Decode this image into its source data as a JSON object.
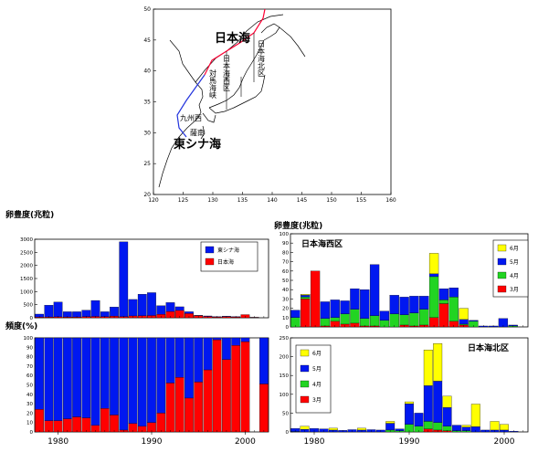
{
  "colors": {
    "blue": "#0018f0",
    "red": "#ff0000",
    "green": "#22d422",
    "yellow": "#ffff00",
    "line_japan_sea": "#ff0033",
    "line_east_china_sea": "#2233dd"
  },
  "map": {
    "labels": {
      "japan_sea": "日本海",
      "east_china_sea": "東シナ海",
      "japan_sea_north": "日本海北区",
      "japan_sea_west": "日本海西区",
      "tsushima_strait": "対馬海峡",
      "kyushu_west": "九州西",
      "kyushu_south": "薩南"
    },
    "x_ticks": [
      "120",
      "125",
      "130",
      "135",
      "140",
      "145",
      "150",
      "155",
      "160"
    ],
    "y_ticks": [
      "50",
      "45",
      "40",
      "35",
      "30",
      "25",
      "20"
    ]
  },
  "chart_data": [
    {
      "id": "egg_total",
      "type": "bar",
      "stacked": "overlay",
      "ylabel": "卵豊度(兆粒)",
      "ylim": [
        0,
        3000
      ],
      "y_ticks": [
        "3000",
        "2500",
        "2000",
        "1500",
        "1000",
        "500",
        "0"
      ],
      "x": [
        1978,
        1979,
        1980,
        1981,
        1982,
        1983,
        1984,
        1985,
        1986,
        1987,
        1988,
        1989,
        1990,
        1991,
        1992,
        1993,
        1994,
        1995,
        1996,
        1997,
        1998,
        1999,
        2000,
        2001
      ],
      "series": [
        {
          "name": "東シナ海",
          "color": "#0018f0",
          "values": [
            140,
            480,
            600,
            230,
            230,
            290,
            660,
            230,
            410,
            2900,
            700,
            900,
            960,
            460,
            580,
            420,
            230,
            95,
            70,
            45,
            60,
            45,
            50,
            20
          ]
        },
        {
          "name": "日本海",
          "color": "#ff0000",
          "values": [
            25,
            30,
            35,
            30,
            30,
            40,
            50,
            40,
            60,
            45,
            70,
            75,
            85,
            130,
            240,
            280,
            160,
            80,
            50,
            30,
            40,
            30,
            120,
            15
          ]
        }
      ],
      "legend_position": "top-right"
    },
    {
      "id": "frequency",
      "type": "bar",
      "stacked": true,
      "ylabel": "頻度(%)",
      "ylim": [
        0,
        100
      ],
      "y_ticks": [
        "100",
        "90",
        "80",
        "70",
        "60",
        "50",
        "40",
        "30",
        "20",
        "10",
        "0"
      ],
      "x_ticks": [
        "1980",
        "1990",
        "2000"
      ],
      "x": [
        1978,
        1979,
        1980,
        1981,
        1982,
        1983,
        1984,
        1985,
        1986,
        1987,
        1988,
        1989,
        1990,
        1991,
        1992,
        1993,
        1994,
        1995,
        1996,
        1997,
        1998,
        1999,
        2000,
        2002
      ],
      "series": [
        {
          "name": "日本海",
          "color": "#ff0000",
          "values": [
            24,
            12,
            12,
            14,
            16,
            15,
            7,
            25,
            18,
            2,
            9,
            6,
            10,
            20,
            52,
            58,
            36,
            53,
            66,
            98,
            77,
            92,
            96,
            51
          ]
        },
        {
          "name": "東シナ海",
          "color": "#0018f0",
          "values": [
            76,
            88,
            88,
            86,
            84,
            85,
            93,
            75,
            82,
            98,
            91,
            94,
            90,
            80,
            48,
            42,
            64,
            47,
            34,
            2,
            23,
            8,
            4,
            49
          ]
        }
      ]
    },
    {
      "id": "japan_sea_west",
      "type": "bar",
      "stacked": true,
      "title": "日本海西区",
      "ylabel": "卵豊度(兆粒)",
      "ylim": [
        0,
        100
      ],
      "y_ticks": [
        "100",
        "90",
        "80",
        "70",
        "60",
        "50",
        "40",
        "30",
        "20",
        "10",
        "0"
      ],
      "x": [
        1978,
        1979,
        1980,
        1981,
        1982,
        1983,
        1984,
        1985,
        1986,
        1987,
        1988,
        1989,
        1990,
        1991,
        1992,
        1993,
        1994,
        1995,
        1996,
        1997,
        1998,
        1999,
        2000
      ],
      "series": [
        {
          "name": "3月",
          "color": "#ff0000",
          "values": [
            0,
            30,
            60,
            1,
            6,
            3,
            4,
            1,
            1,
            0,
            0,
            2,
            1,
            2,
            10,
            25,
            6,
            2,
            0,
            0,
            0,
            0,
            0
          ]
        },
        {
          "name": "4月",
          "color": "#22d422",
          "values": [
            10,
            2,
            0,
            8,
            4,
            11,
            15,
            8,
            11,
            7,
            14,
            11,
            14,
            17,
            44,
            4,
            26,
            1,
            6,
            0,
            0,
            0,
            1
          ]
        },
        {
          "name": "5月",
          "color": "#0018f0",
          "values": [
            8,
            2,
            0,
            18,
            19,
            14,
            22,
            31,
            55,
            10,
            20,
            19,
            18,
            14,
            3,
            12,
            10,
            5,
            1,
            1,
            1,
            9,
            1
          ]
        },
        {
          "name": "6月",
          "color": "#ffff00",
          "values": [
            0,
            1,
            0,
            0,
            0,
            0,
            0,
            0,
            0,
            0,
            0,
            0,
            0,
            0,
            22,
            0,
            0,
            12,
            0,
            0,
            0,
            0,
            0
          ]
        }
      ],
      "legend_position": "top-right"
    },
    {
      "id": "japan_sea_north",
      "type": "bar",
      "stacked": true,
      "title": "日本海北区",
      "ylim": [
        0,
        250
      ],
      "y_ticks": [
        "250",
        "200",
        "150",
        "100",
        "50",
        "0"
      ],
      "x_ticks": [
        "1980",
        "1990",
        "2000"
      ],
      "x": [
        1978,
        1979,
        1980,
        1981,
        1982,
        1983,
        1984,
        1985,
        1986,
        1987,
        1988,
        1989,
        1990,
        1991,
        1992,
        1993,
        1994,
        1995,
        1996,
        1997,
        1998,
        1999,
        2000,
        2001
      ],
      "series": [
        {
          "name": "3月",
          "color": "#ff0000",
          "values": [
            0,
            0,
            0,
            0,
            0,
            0,
            0,
            0,
            0,
            0,
            0,
            0,
            0,
            0,
            8,
            5,
            3,
            0,
            0,
            0,
            0,
            0,
            0,
            0
          ]
        },
        {
          "name": "4月",
          "color": "#22d422",
          "values": [
            1,
            0,
            0,
            0,
            0,
            0,
            0,
            0,
            0,
            0,
            5,
            3,
            20,
            15,
            20,
            20,
            12,
            3,
            3,
            0,
            0,
            0,
            0,
            0
          ]
        },
        {
          "name": "5月",
          "color": "#0018f0",
          "values": [
            8,
            7,
            9,
            8,
            5,
            4,
            6,
            5,
            6,
            5,
            18,
            5,
            55,
            35,
            95,
            110,
            50,
            15,
            10,
            14,
            5,
            5,
            5,
            2
          ]
        },
        {
          "name": "6月",
          "color": "#ffff00",
          "values": [
            0,
            8,
            0,
            0,
            5,
            0,
            0,
            5,
            0,
            0,
            5,
            0,
            5,
            0,
            95,
            100,
            30,
            0,
            5,
            60,
            0,
            23,
            15,
            0
          ]
        }
      ],
      "legend_position": "top-left"
    }
  ]
}
